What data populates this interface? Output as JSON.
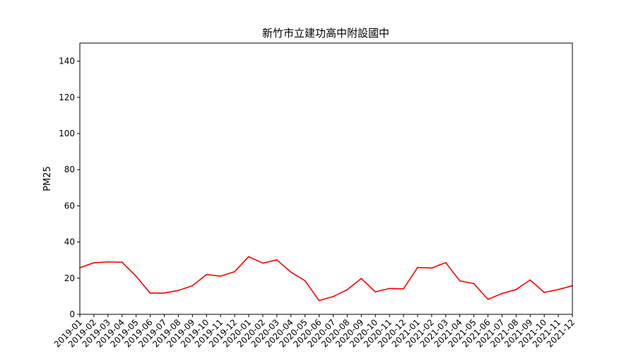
{
  "chart_data": {
    "type": "line",
    "title": "新竹市立建功高中附設國中",
    "xlabel": "",
    "ylabel": "PM25",
    "ylim": [
      0,
      150
    ],
    "yticks": [
      0,
      20,
      40,
      60,
      80,
      100,
      120,
      140
    ],
    "grid": false,
    "legend": "none",
    "line_color": "#ff0000",
    "x": [
      "2019-01",
      "2019-02",
      "2019-03",
      "2019-04",
      "2019-05",
      "2019-06",
      "2019-07",
      "2019-08",
      "2019-09",
      "2019-10",
      "2019-11",
      "2019-12",
      "2020-01",
      "2020-02",
      "2020-03",
      "2020-04",
      "2020-05",
      "2020-06",
      "2020-07",
      "2020-08",
      "2020-09",
      "2020-10",
      "2020-11",
      "2020-12",
      "2021-01",
      "2021-02",
      "2021-03",
      "2021-04",
      "2021-05",
      "2021-06",
      "2021-07",
      "2021-08",
      "2021-09",
      "2021-10",
      "2021-11",
      "2021-12"
    ],
    "series": [
      {
        "values": [
          25.8,
          28.5,
          29.0,
          28.8,
          21.0,
          11.7,
          11.8,
          13.2,
          15.8,
          22.0,
          21.1,
          23.6,
          31.9,
          28.3,
          30.1,
          23.3,
          18.6,
          7.6,
          9.8,
          13.6,
          19.8,
          12.4,
          14.3,
          14.1,
          25.9,
          25.6,
          28.6,
          18.5,
          17.0,
          8.3,
          11.5,
          13.7,
          19.0,
          12.1,
          13.7,
          15.8
        ]
      }
    ]
  }
}
